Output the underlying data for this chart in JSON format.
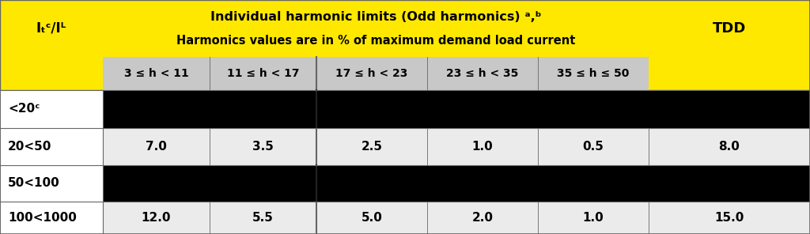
{
  "title_line1": "Individual harmonic limits (Odd harmonics) ᵃ,ᵇ",
  "title_line2": "Harmonics values are in % of maximum demand load current",
  "col_isc": "Iₜᶜ/Iᴸ",
  "col_tdd": "TDD",
  "sub_headers": [
    "3 ≤ h < 11",
    "11 ≤ h < 17",
    "17 ≤ h < 23",
    "23 ≤ h < 35",
    "35 ≤ h ≤ 50"
  ],
  "rows": [
    {
      "isc": "<20ᶜ",
      "values": null,
      "black": true
    },
    {
      "isc": "20<50",
      "values": [
        "7.0",
        "3.5",
        "2.5",
        "1.0",
        "0.5",
        "8.0"
      ],
      "black": false
    },
    {
      "isc": "50<100",
      "values": null,
      "black": true
    },
    {
      "isc": "100<1000",
      "values": [
        "12.0",
        "5.5",
        "5.0",
        "2.0",
        "1.0",
        "15.0"
      ],
      "black": false
    }
  ],
  "yellow": "#FFE800",
  "gray_subheader": "#C8C8C8",
  "gray_row": "#EBEBEB",
  "white": "#FFFFFF",
  "black": "#000000",
  "border": "#666666",
  "title_fontsize": 11.5,
  "subtitle_fontsize": 10.5,
  "header_fontsize": 10,
  "cell_fontsize": 11,
  "isc_fontsize": 12,
  "tdd_fontsize": 13
}
